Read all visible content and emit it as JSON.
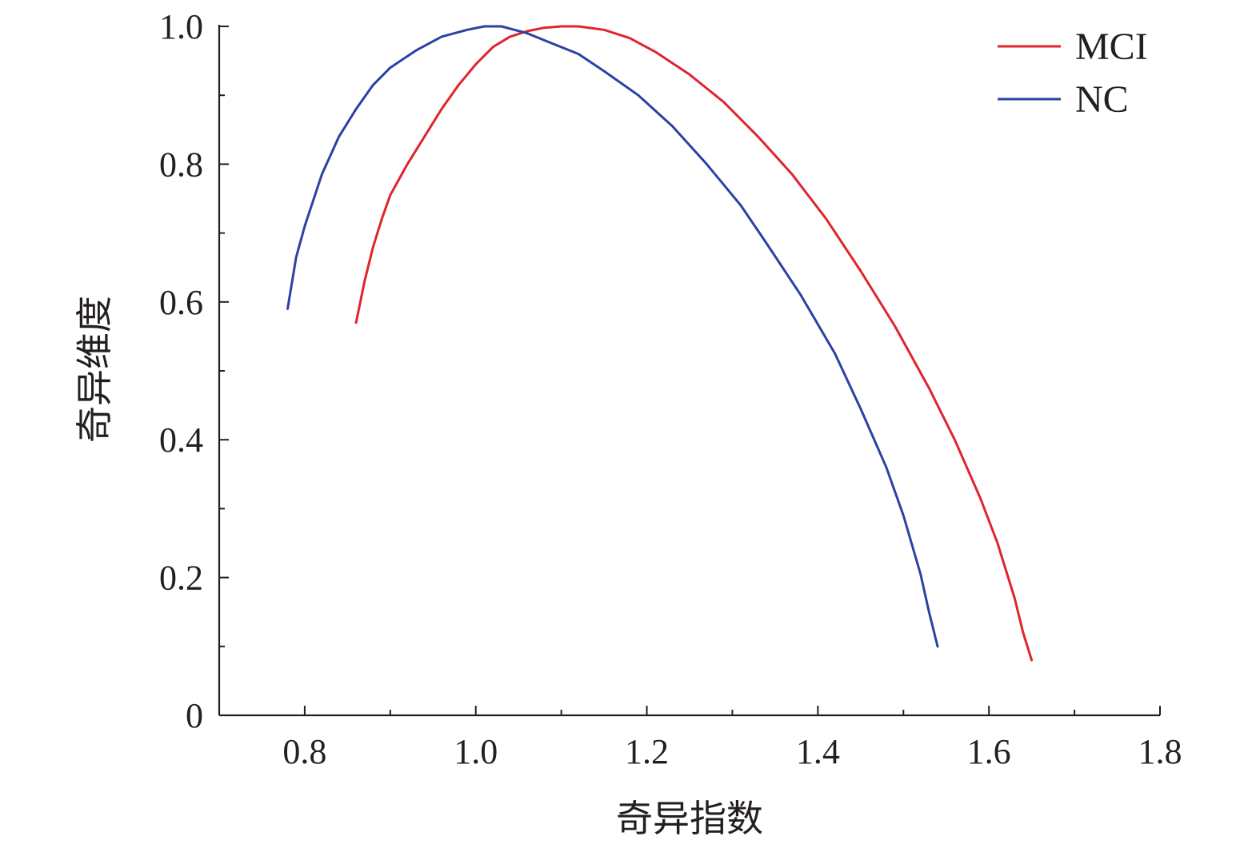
{
  "chart_data": {
    "type": "line",
    "xlabel": "奇异指数",
    "ylabel": "奇异维度",
    "xlim": [
      0.7,
      1.8
    ],
    "ylim": [
      0,
      1.0
    ],
    "x_ticks": [
      0.8,
      1.0,
      1.2,
      1.4,
      1.6,
      1.8
    ],
    "x_tick_labels": [
      "0.8",
      "1.0",
      "1.2",
      "1.4",
      "1.6",
      "1.8"
    ],
    "y_ticks": [
      0,
      0.2,
      0.4,
      0.6,
      0.8,
      1.0
    ],
    "y_tick_labels": [
      "0",
      "0.2",
      "0.4",
      "0.6",
      "0.8",
      "1.0"
    ],
    "grid": false,
    "legend_position": "top-right",
    "series": [
      {
        "name": "MCI",
        "color": "#e0242c",
        "points": [
          [
            0.86,
            0.57
          ],
          [
            0.87,
            0.63
          ],
          [
            0.88,
            0.68
          ],
          [
            0.89,
            0.72
          ],
          [
            0.9,
            0.755
          ],
          [
            0.92,
            0.8
          ],
          [
            0.94,
            0.84
          ],
          [
            0.96,
            0.88
          ],
          [
            0.98,
            0.915
          ],
          [
            1.0,
            0.945
          ],
          [
            1.02,
            0.97
          ],
          [
            1.04,
            0.985
          ],
          [
            1.06,
            0.993
          ],
          [
            1.08,
            0.998
          ],
          [
            1.1,
            1.0
          ],
          [
            1.12,
            1.0
          ],
          [
            1.15,
            0.995
          ],
          [
            1.18,
            0.983
          ],
          [
            1.21,
            0.963
          ],
          [
            1.25,
            0.93
          ],
          [
            1.29,
            0.89
          ],
          [
            1.33,
            0.84
          ],
          [
            1.37,
            0.785
          ],
          [
            1.41,
            0.72
          ],
          [
            1.45,
            0.645
          ],
          [
            1.49,
            0.565
          ],
          [
            1.53,
            0.475
          ],
          [
            1.56,
            0.4
          ],
          [
            1.59,
            0.315
          ],
          [
            1.61,
            0.25
          ],
          [
            1.63,
            0.17
          ],
          [
            1.64,
            0.12
          ],
          [
            1.65,
            0.08
          ]
        ]
      },
      {
        "name": "NC",
        "color": "#2b41a4",
        "points": [
          [
            0.78,
            0.59
          ],
          [
            0.79,
            0.665
          ],
          [
            0.8,
            0.71
          ],
          [
            0.82,
            0.785
          ],
          [
            0.84,
            0.84
          ],
          [
            0.86,
            0.88
          ],
          [
            0.88,
            0.915
          ],
          [
            0.9,
            0.94
          ],
          [
            0.93,
            0.965
          ],
          [
            0.96,
            0.985
          ],
          [
            0.99,
            0.995
          ],
          [
            1.01,
            1.0
          ],
          [
            1.03,
            1.0
          ],
          [
            1.06,
            0.99
          ],
          [
            1.09,
            0.975
          ],
          [
            1.12,
            0.96
          ],
          [
            1.15,
            0.935
          ],
          [
            1.19,
            0.9
          ],
          [
            1.23,
            0.855
          ],
          [
            1.27,
            0.8
          ],
          [
            1.31,
            0.74
          ],
          [
            1.34,
            0.685
          ],
          [
            1.38,
            0.61
          ],
          [
            1.42,
            0.525
          ],
          [
            1.45,
            0.445
          ],
          [
            1.48,
            0.36
          ],
          [
            1.5,
            0.29
          ],
          [
            1.52,
            0.205
          ],
          [
            1.53,
            0.15
          ],
          [
            1.54,
            0.1
          ]
        ]
      }
    ]
  }
}
